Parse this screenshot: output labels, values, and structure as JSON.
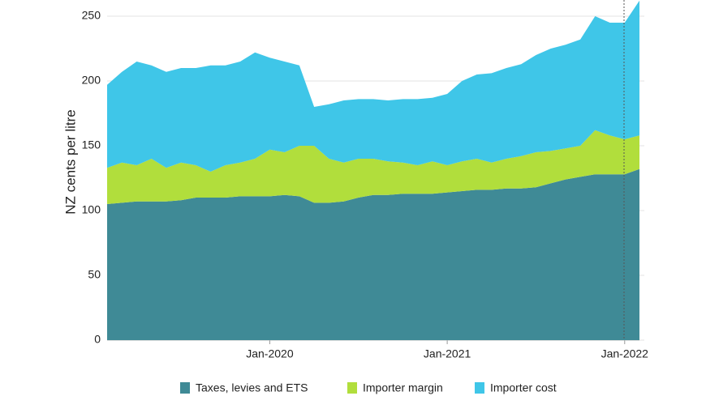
{
  "chart_data": {
    "type": "stacked-area",
    "ylabel": "NZ cents per litre",
    "categories": [
      null,
      null,
      null,
      null,
      null,
      null,
      null,
      null,
      null,
      null,
      null,
      "Jan-2020",
      null,
      null,
      null,
      null,
      null,
      null,
      null,
      null,
      null,
      null,
      null,
      "Jan-2021",
      null,
      null,
      null,
      null,
      null,
      null,
      null,
      null,
      null,
      null,
      null,
      "Jan-2022",
      null
    ],
    "series": [
      {
        "name": "Taxes, levies and ETS",
        "color": "#3f8a96",
        "values": [
          105,
          106,
          107,
          107,
          107,
          108,
          110,
          110,
          110,
          111,
          111,
          111,
          112,
          111,
          106,
          106,
          107,
          110,
          112,
          112,
          113,
          113,
          113,
          114,
          115,
          116,
          116,
          117,
          117,
          118,
          121,
          124,
          126,
          128,
          128,
          128,
          132
        ]
      },
      {
        "name": "Importer margin",
        "color": "#b1de3c",
        "values": [
          28,
          31,
          28,
          33,
          26,
          29,
          25,
          20,
          25,
          26,
          29,
          36,
          33,
          39,
          44,
          34,
          30,
          30,
          28,
          26,
          24,
          22,
          25,
          21,
          23,
          24,
          21,
          23,
          25,
          27,
          25,
          24,
          24,
          34,
          30,
          27,
          26
        ]
      },
      {
        "name": "Importer cost",
        "color": "#3fc6e8",
        "values": [
          64,
          70,
          80,
          72,
          74,
          73,
          75,
          82,
          77,
          78,
          82,
          71,
          70,
          62,
          30,
          42,
          48,
          46,
          46,
          47,
          49,
          51,
          49,
          55,
          62,
          65,
          69,
          70,
          71,
          75,
          79,
          80,
          82,
          88,
          87,
          90,
          104
        ]
      }
    ],
    "ylim": [
      0,
      260
    ],
    "yticks": [
      0,
      50,
      100,
      150,
      200,
      250
    ],
    "grid": true
  }
}
